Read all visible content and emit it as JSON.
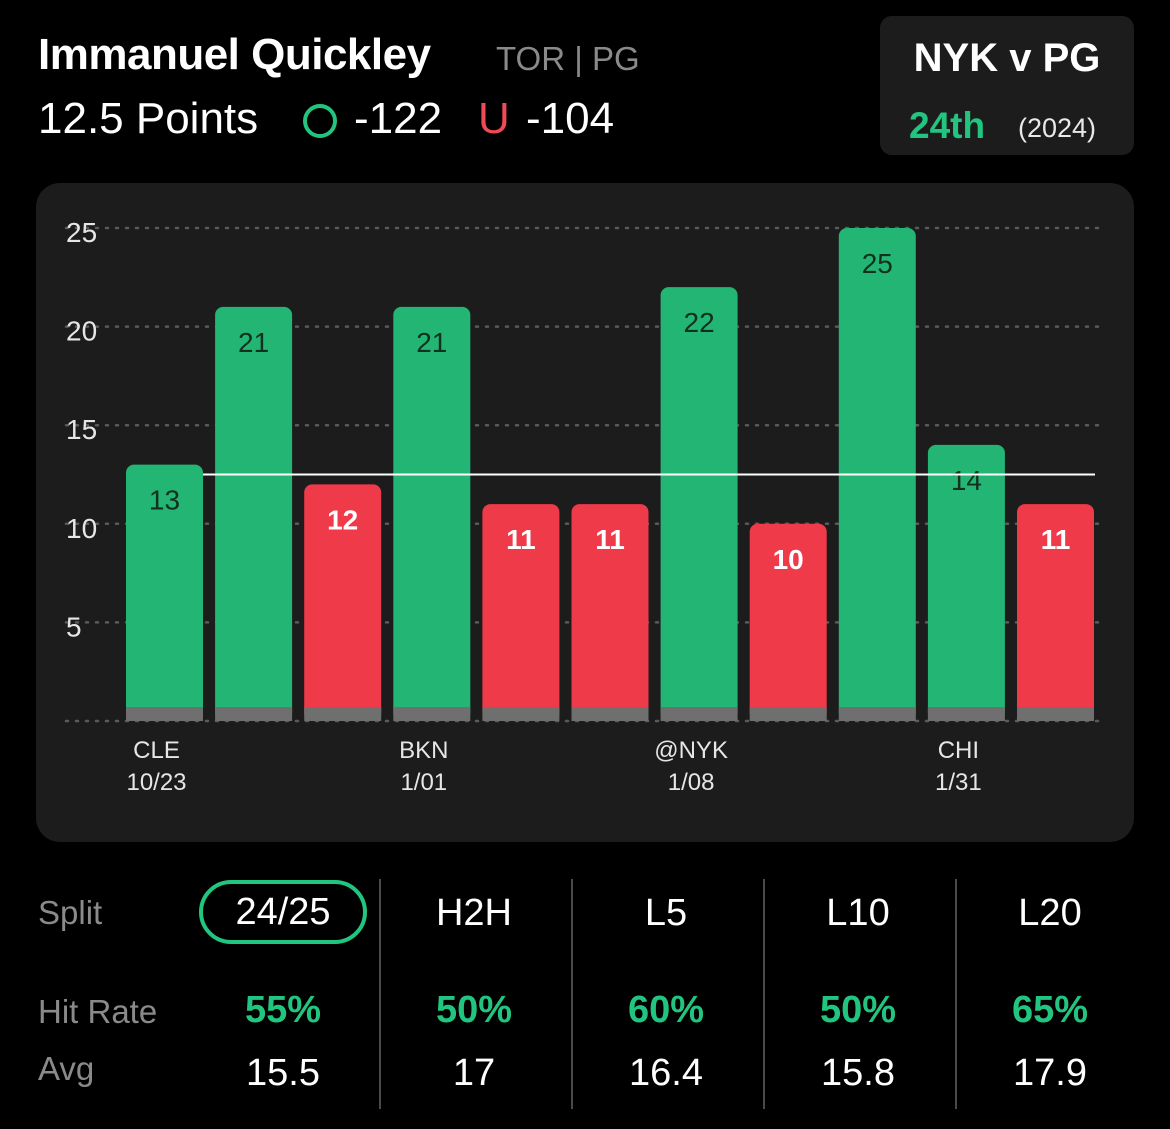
{
  "header": {
    "player_name": "Immanuel Quickley",
    "team_pos": "TOR | PG",
    "prop_line": "12.5 Points",
    "over_odds": "-122",
    "under_label": "U",
    "under_odds": "-104"
  },
  "matchup": {
    "title": "NYK v PG",
    "rank": "24th",
    "year": "(2024)"
  },
  "chart_data": {
    "type": "bar",
    "values": [
      13,
      21,
      12,
      21,
      11,
      11,
      22,
      10,
      25,
      14,
      11
    ],
    "ylim": [
      0,
      25
    ],
    "yticks": [
      5,
      10,
      15,
      20,
      25
    ],
    "threshold": 12.5,
    "x_labels": [
      {
        "index": 0,
        "team": "CLE",
        "date": "10/23"
      },
      {
        "index": 3,
        "team": "BKN",
        "date": "1/01"
      },
      {
        "index": 6,
        "team": "@NYK",
        "date": "1/08"
      },
      {
        "index": 9,
        "team": "CHI",
        "date": "1/31"
      }
    ],
    "colors": {
      "over": "#22b573",
      "under": "#ef3a4a",
      "grid": "#5a5a5a"
    }
  },
  "stats": {
    "split_label": "Split",
    "hit_label": "Hit Rate",
    "avg_label": "Avg",
    "columns": [
      {
        "label": "24/25",
        "hit": "55%",
        "avg": "15.5"
      },
      {
        "label": "H2H",
        "hit": "50%",
        "avg": "17"
      },
      {
        "label": "L5",
        "hit": "60%",
        "avg": "16.4"
      },
      {
        "label": "L10",
        "hit": "50%",
        "avg": "15.8"
      },
      {
        "label": "L20",
        "hit": "65%",
        "avg": "17.9"
      }
    ]
  }
}
